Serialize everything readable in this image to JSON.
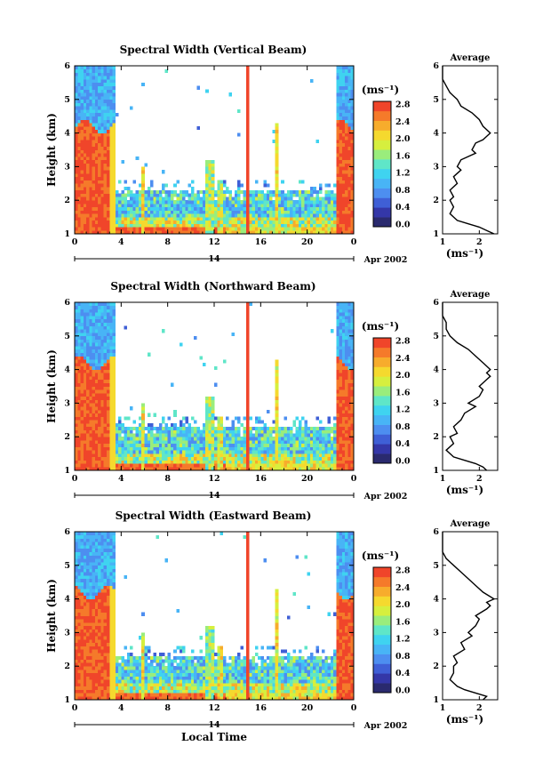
{
  "colors": {
    "scale": [
      "#2a2a6e",
      "#3437a8",
      "#3f5fd6",
      "#4d8ef0",
      "#48b4f6",
      "#3fd3f0",
      "#5fe6c8",
      "#9aed7c",
      "#d6ef3e",
      "#f5d92e",
      "#f7ac2c",
      "#f57a2a",
      "#f0452a"
    ],
    "no_data": "#ffffff"
  },
  "shared": {
    "time_ticks": [
      "0",
      "4",
      "8",
      "12",
      "16",
      "20",
      "0"
    ],
    "day_label": "14",
    "date_label": "Apr 2002",
    "height_ticks": [
      "1",
      "2",
      "3",
      "4",
      "5",
      "6"
    ],
    "height_axis_label": "Height (km)",
    "colorbar_unit": "(ms⁻¹)",
    "colorbar_ticks": [
      "0.0",
      "0.4",
      "0.8",
      "1.2",
      "1.6",
      "2.0",
      "2.4",
      "2.8"
    ],
    "average_title": "Average",
    "average_unit": "(ms⁻¹)",
    "x_axis_label": "Local Time"
  },
  "chart_data": [
    {
      "type": "heatmap",
      "title": "Spectral Width (Vertical Beam)",
      "xlabel": "",
      "ylabel": "Height (km)",
      "xlim": [
        0,
        24
      ],
      "ylim": [
        1,
        6
      ],
      "colorbar_range": [
        0.0,
        2.8
      ],
      "average_profile": {
        "xlim": [
          1,
          2.5
        ],
        "x_ticks": [
          "1",
          "2"
        ],
        "height": [
          1.0,
          1.1,
          1.2,
          1.3,
          1.4,
          1.5,
          1.6,
          1.8,
          2.0,
          2.1,
          2.3,
          2.5,
          2.7,
          2.9,
          3.0,
          3.2,
          3.4,
          3.5,
          3.7,
          3.8,
          3.9,
          4.0,
          4.2,
          4.4,
          4.6,
          4.8,
          5.0,
          5.2,
          5.4,
          5.6,
          5.8,
          6.0
        ],
        "width": [
          2.4,
          2.2,
          2.0,
          1.7,
          1.4,
          1.3,
          1.2,
          1.3,
          1.2,
          1.3,
          1.2,
          1.4,
          1.3,
          1.5,
          1.4,
          1.5,
          1.9,
          1.8,
          1.9,
          2.1,
          2.2,
          2.3,
          2.1,
          2.0,
          1.8,
          1.5,
          1.4,
          1.2,
          1.1,
          1.0,
          1.0,
          1.0
        ]
      }
    },
    {
      "type": "heatmap",
      "title": "Spectral Width (Northward Beam)",
      "xlabel": "",
      "ylabel": "Height (km)",
      "xlim": [
        0,
        24
      ],
      "ylim": [
        1,
        6
      ],
      "colorbar_range": [
        0.0,
        2.8
      ],
      "average_profile": {
        "xlim": [
          1,
          2.5
        ],
        "x_ticks": [
          "1",
          "2"
        ],
        "height": [
          1.0,
          1.1,
          1.2,
          1.3,
          1.4,
          1.5,
          1.6,
          1.8,
          2.0,
          2.1,
          2.3,
          2.5,
          2.7,
          2.9,
          3.0,
          3.2,
          3.4,
          3.5,
          3.7,
          3.8,
          3.9,
          4.0,
          4.2,
          4.4,
          4.6,
          4.8,
          5.0,
          5.2,
          5.4,
          5.6,
          5.8,
          6.0
        ],
        "width": [
          2.2,
          2.1,
          1.9,
          1.6,
          1.3,
          1.2,
          1.1,
          1.3,
          1.2,
          1.4,
          1.3,
          1.5,
          1.6,
          1.9,
          1.7,
          2.0,
          2.1,
          2.0,
          2.2,
          2.3,
          2.2,
          2.3,
          2.1,
          1.9,
          1.7,
          1.4,
          1.2,
          1.1,
          1.1,
          1.0,
          1.0,
          1.0
        ]
      }
    },
    {
      "type": "heatmap",
      "title": "Spectral Width (Eastward Beam)",
      "xlabel": "Local Time",
      "ylabel": "Height (km)",
      "xlim": [
        0,
        24
      ],
      "ylim": [
        1,
        6
      ],
      "colorbar_range": [
        0.0,
        2.8
      ],
      "average_profile": {
        "xlim": [
          1,
          2.5
        ],
        "x_ticks": [
          "1",
          "2"
        ],
        "height": [
          1.0,
          1.1,
          1.2,
          1.3,
          1.4,
          1.5,
          1.6,
          1.8,
          2.0,
          2.1,
          2.3,
          2.5,
          2.7,
          2.9,
          3.0,
          3.2,
          3.4,
          3.5,
          3.7,
          3.8,
          3.9,
          4.0,
          4.2,
          4.4,
          4.6,
          4.8,
          5.0,
          5.2,
          5.4,
          5.6,
          5.8,
          6.0
        ],
        "width": [
          2.1,
          2.2,
          1.9,
          1.6,
          1.4,
          1.3,
          1.2,
          1.3,
          1.3,
          1.4,
          1.3,
          1.6,
          1.5,
          1.8,
          1.7,
          1.9,
          2.0,
          1.9,
          2.2,
          2.3,
          2.2,
          2.4,
          2.1,
          1.9,
          1.7,
          1.5,
          1.3,
          1.1,
          1.0,
          1.0,
          1.0,
          1.0
        ]
      }
    }
  ]
}
